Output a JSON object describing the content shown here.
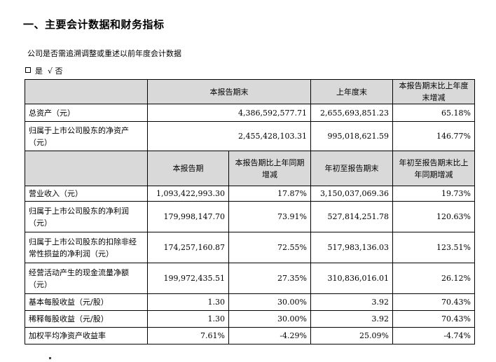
{
  "heading": "一、主要会计数据和财务指标",
  "restatement_question": "公司是否需追溯调整或重述以前年度会计数据",
  "restatement_answer": {
    "yes_label": "是",
    "check_mark": "√",
    "no_label": "否"
  },
  "table1": {
    "headers": [
      "本报告期末",
      "上年度末",
      "本报告期末比上年度末增减"
    ],
    "rows": [
      {
        "label": "总资产（元）",
        "values": [
          "4,386,592,577.71",
          "2,655,693,851.23",
          "65.18%"
        ]
      },
      {
        "label_line1": "归属于上市公司股东的净资产",
        "label_line2": "（元）",
        "values": [
          "2,455,428,103.31",
          "995,018,621.59",
          "146.77%"
        ]
      }
    ]
  },
  "table2": {
    "headers": [
      "本报告期",
      "本报告期比上年同期",
      "增减",
      "年初至报告期末",
      "年初至报告期末比上",
      "年同期增减"
    ],
    "rows": [
      {
        "label_line1": "营业收入（元）",
        "label_line2": "",
        "values": [
          "1,093,422,993.30",
          "17.87%",
          "3,150,037,069.36",
          "19.73%"
        ]
      },
      {
        "label_line1": "归属于上市公司股东的净利润",
        "label_line2": "（元）",
        "values": [
          "179,998,147.70",
          "73.91%",
          "527,814,251.78",
          "120.63%"
        ]
      },
      {
        "label_line1": "归属于上市公司股东的扣除非经",
        "label_line2": "常性损益的净利润（元）",
        "values": [
          "174,257,160.87",
          "72.55%",
          "517,983,136.03",
          "123.51%"
        ]
      },
      {
        "label_line1": "经营活动产生的现金流量净额",
        "label_line2": "（元）",
        "values": [
          "199,972,435.51",
          "27.35%",
          "310,836,016.01",
          "26.12%"
        ]
      },
      {
        "label_line1": "基本每股收益（元/股）",
        "label_line2": "",
        "values": [
          "1.30",
          "30.00%",
          "3.92",
          "70.43%"
        ]
      },
      {
        "label_line1": "稀释每股收益（元/股）",
        "label_line2": "",
        "values": [
          "1.30",
          "30.00%",
          "3.92",
          "70.43%"
        ]
      },
      {
        "label_line1": "加权平均净资产收益率",
        "label_line2": "",
        "values": [
          "7.61%",
          "-4.29%",
          "25.09%",
          "-4.74%"
        ]
      }
    ]
  }
}
